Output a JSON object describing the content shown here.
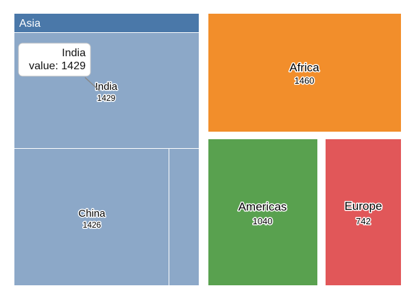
{
  "chart_data": {
    "type": "treemap",
    "title": "",
    "series": [
      {
        "name": "Asia",
        "color": "#4a78a9",
        "fill": "#8ca8c8",
        "children": [
          {
            "name": "India",
            "value": 1429
          },
          {
            "name": "China",
            "value": 1426
          },
          {
            "name": "",
            "value": null
          }
        ]
      },
      {
        "name": "Africa",
        "value": 1460,
        "color": "#f28e2b"
      },
      {
        "name": "Americas",
        "value": 1040,
        "color": "#59a14f"
      },
      {
        "name": "Europe",
        "value": 742,
        "color": "#e15759"
      }
    ],
    "tooltip": {
      "visible": true,
      "target": "India",
      "line1": "India",
      "line2": "value: 1429"
    }
  }
}
